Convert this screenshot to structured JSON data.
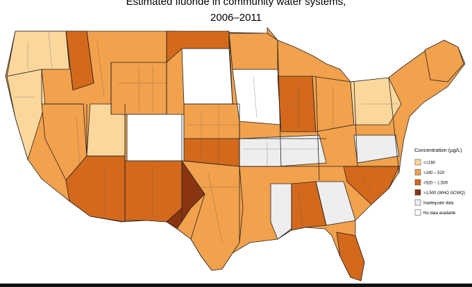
{
  "title_line1": "Estimated fluoride in community water systems,",
  "title_line2": "2006–2011",
  "legend": {
    "title": "Concentration (µg/L)",
    "items": [
      {
        "label": "<=190",
        "color": "#fbd79c"
      },
      {
        "label": ">190 – 520",
        "color": "#f2a14c"
      },
      {
        "label": ">520 – 1,500",
        "color": "#d4691c"
      },
      {
        "label": ">1,500 (WHO GCWQ)",
        "color": "#8a3510"
      },
      {
        "label": "Inadequate data",
        "color": "#eeeeee"
      },
      {
        "label": "No data available",
        "color": "#ffffff"
      }
    ]
  }
}
